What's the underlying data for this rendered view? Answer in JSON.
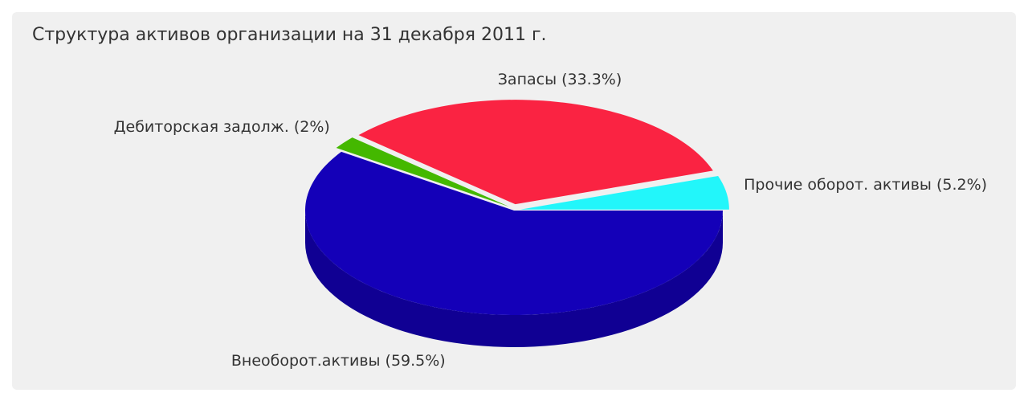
{
  "chart_data": {
    "type": "pie3d",
    "title": "Структура активов организации на 31 декабря 2011 г.",
    "categories": [
      "Внеоборот.активы",
      "Дебиторская задолж.",
      "Запасы",
      "Прочие оборот. активы"
    ],
    "values": [
      59.5,
      2,
      33.3,
      5.2
    ],
    "value_labels": [
      "(59.5%)",
      "(2%)",
      "(33.3%)",
      "(5.2%)"
    ],
    "colors": [
      "#1400b8",
      "#44b800",
      "#fa2342",
      "#22f6fa"
    ]
  }
}
